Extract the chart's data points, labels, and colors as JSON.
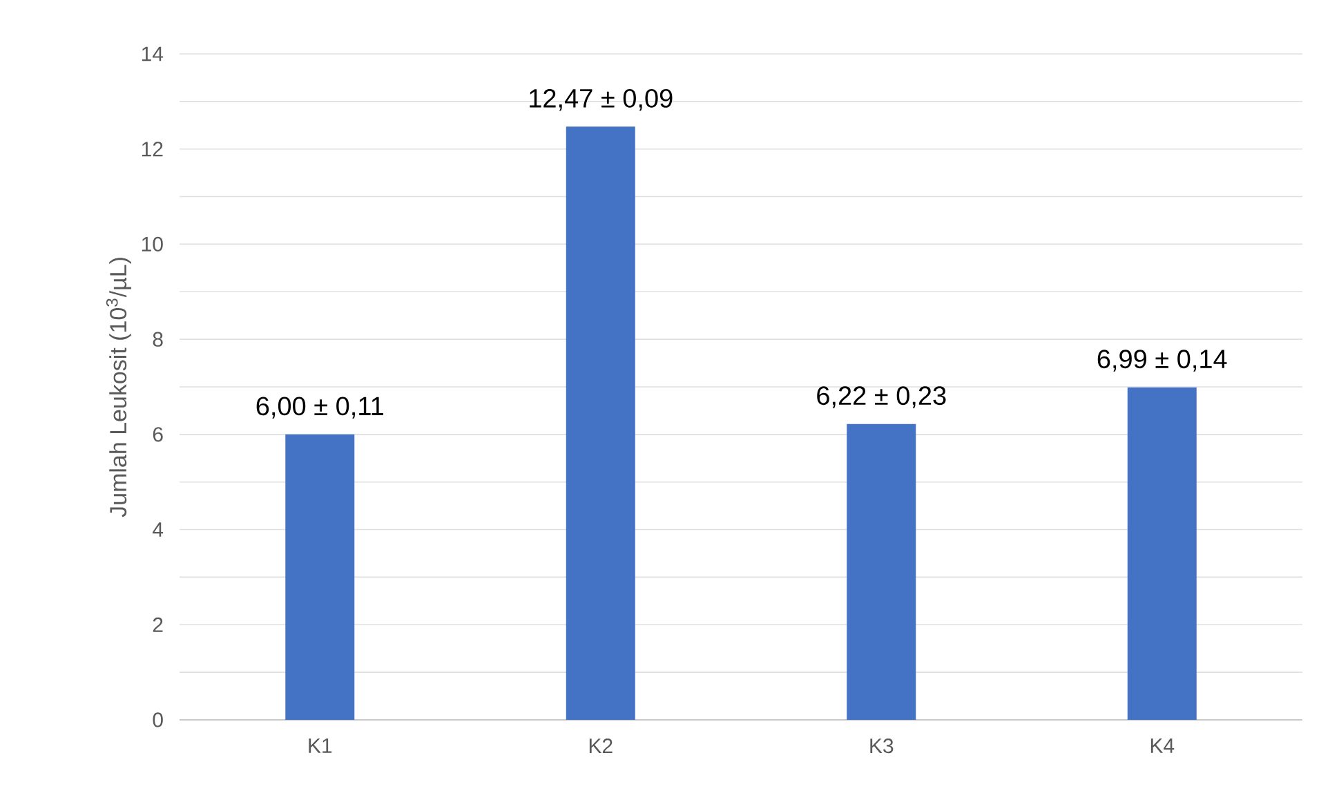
{
  "chart_data": {
    "type": "bar",
    "ylabel": "Jumlah Leukosit (10$^{3}$/µL)",
    "categories": [
      "K1",
      "K2",
      "K3",
      "K4"
    ],
    "values": [
      6.0,
      12.47,
      6.22,
      6.99
    ],
    "value_labels": [
      "6,00 ± 0,11",
      "12,47 ± 0,09",
      "6,22 ± 0,23",
      "6,99 ± 0,14"
    ],
    "color": "#4472c4",
    "ylim": [
      0,
      14
    ],
    "yticks": [
      0,
      {
        "value": 1,
        "label": null
      },
      2,
      {
        "value": 3,
        "label": null
      },
      4,
      {
        "value": 5,
        "label": null
      },
      6,
      {
        "value": 7,
        "label": null
      },
      8,
      {
        "value": 9,
        "label": null
      },
      10,
      {
        "value": 11,
        "label": null
      },
      12,
      {
        "value": 13,
        "label": null
      },
      14
    ],
    "grid": "y"
  }
}
